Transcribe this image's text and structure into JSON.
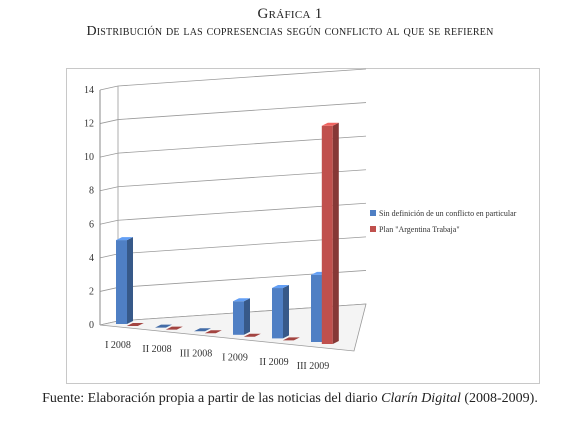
{
  "caption": {
    "number": "Gráfica 1",
    "title": "Distribución de las copresencias según conflicto al que se refieren"
  },
  "source": {
    "prefix": "Fuente: Elaboración propia a partir de las noticias del diario ",
    "publication": "Clarín Digital",
    "suffix": " (2008-2009)."
  },
  "chart_data": {
    "type": "bar",
    "categories": [
      "I 2008",
      "II 2008",
      "III 2008",
      "I 2009",
      "II 2009",
      "III 2009"
    ],
    "series": [
      {
        "name": "Sin definición de un conflicto en particular",
        "values": [
          5,
          0,
          0,
          2,
          3,
          4
        ],
        "color": "#4f7fc4"
      },
      {
        "name": "Plan \"Argentina Trabaja\"",
        "values": [
          0,
          0,
          0,
          0,
          0,
          13
        ],
        "color": "#c0504d"
      }
    ],
    "ylim": [
      0,
      14
    ],
    "yticks": [
      0,
      2,
      4,
      6,
      8,
      10,
      12,
      14
    ],
    "grid": true,
    "legend": "right",
    "three_d": true
  }
}
